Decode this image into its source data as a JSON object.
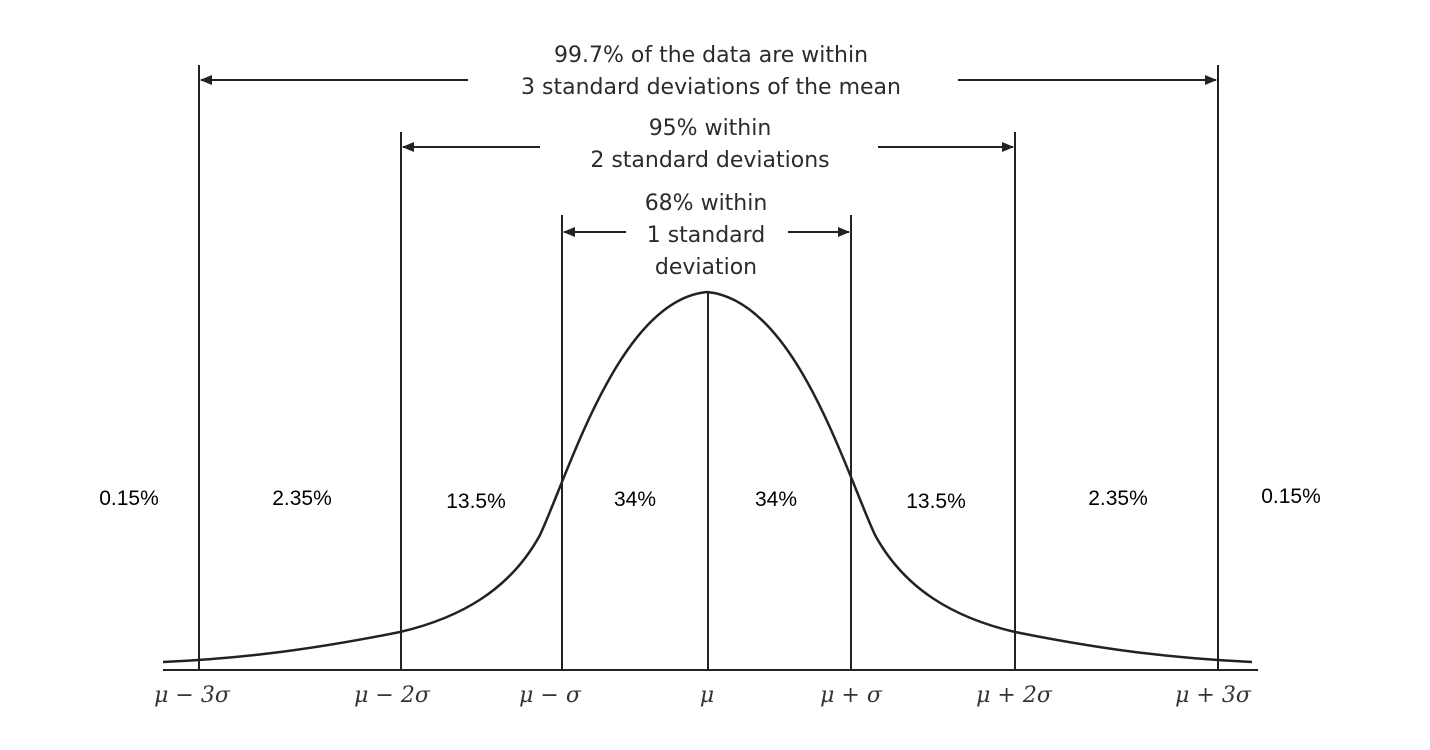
{
  "ranges": [
    {
      "line1": "99.7% of the data are within",
      "line2": "3 standard deviations of the mean"
    },
    {
      "line1": "95% within",
      "line2": "2 standard deviations"
    },
    {
      "line1": "68% within",
      "line2": "1 standard",
      "line3": "deviation"
    }
  ],
  "region_percentages": [
    "0.15%",
    "2.35%",
    "13.5%",
    "34%",
    "34%",
    "13.5%",
    "2.35%",
    "0.15%"
  ],
  "axis_ticks": [
    "μ − 3σ",
    "μ − 2σ",
    "μ − σ",
    "μ",
    "μ + σ",
    "μ + 2σ",
    "μ + 3σ"
  ]
}
